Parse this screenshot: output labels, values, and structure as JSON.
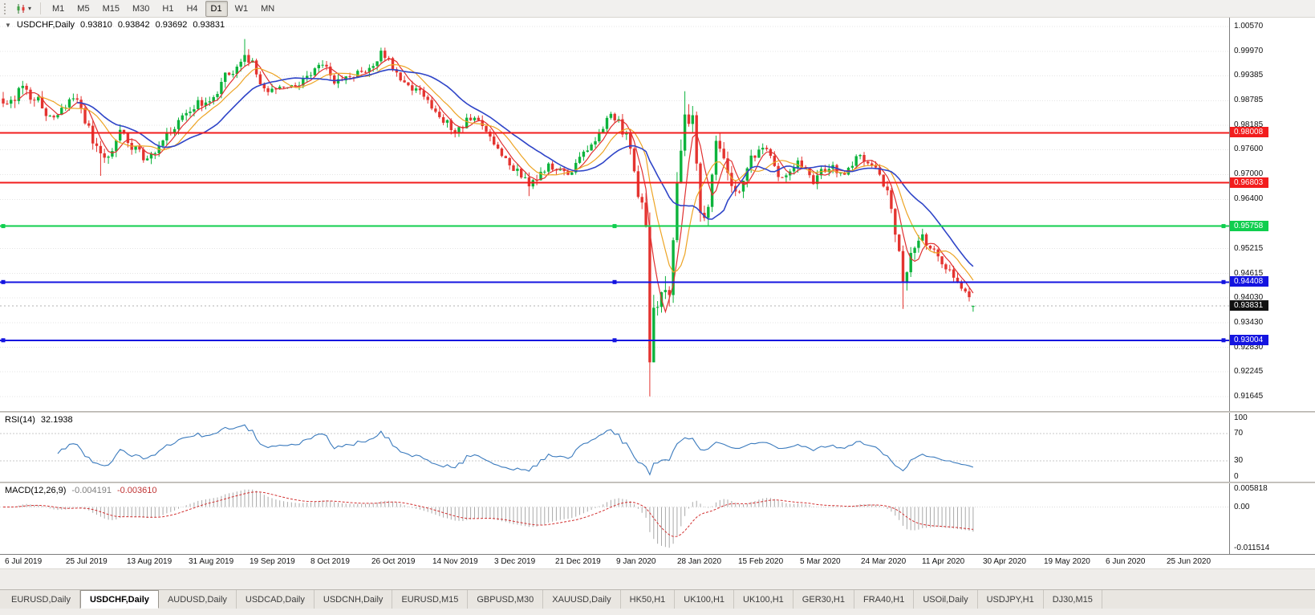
{
  "toolbar": {
    "chart_icon": "candlestick-chart-icon",
    "timeframes": [
      {
        "label": "M1",
        "active": false
      },
      {
        "label": "M5",
        "active": false
      },
      {
        "label": "M15",
        "active": false
      },
      {
        "label": "M30",
        "active": false
      },
      {
        "label": "H1",
        "active": false
      },
      {
        "label": "H4",
        "active": false
      },
      {
        "label": "D1",
        "active": true
      },
      {
        "label": "W1",
        "active": false
      },
      {
        "label": "MN",
        "active": false
      }
    ]
  },
  "icons": {
    "collapse_arrow": "▼",
    "caret_down": "▾"
  },
  "chart_header": {
    "symbol_label": "USDCHF,Daily",
    "open": "0.93810",
    "high": "0.93842",
    "low": "0.93692",
    "close": "0.93831"
  },
  "rsi_panel": {
    "name": "RSI(14)",
    "value": "32.1938"
  },
  "macd_panel": {
    "name": "MACD(12,26,9)",
    "value_main": "-0.004191",
    "value_signal": "-0.003610"
  },
  "time_axis": {
    "labels": [
      "6 Jul 2019",
      "25 Jul 2019",
      "13 Aug 2019",
      "31 Aug 2019",
      "19 Sep 2019",
      "8 Oct 2019",
      "26 Oct 2019",
      "14 Nov 2019",
      "3 Dec 2019",
      "21 Dec 2019",
      "9 Jan 2020",
      "28 Jan 2020",
      "15 Feb 2020",
      "5 Mar 2020",
      "24 Mar 2020",
      "11 Apr 2020",
      "30 Apr 2020",
      "19 May 2020",
      "6 Jun 2020",
      "25 Jun 2020"
    ]
  },
  "tabs": [
    {
      "label": "EURUSD,Daily",
      "active": false
    },
    {
      "label": "USDCHF,Daily",
      "active": true
    },
    {
      "label": "AUDUSD,Daily",
      "active": false
    },
    {
      "label": "USDCAD,Daily",
      "active": false
    },
    {
      "label": "USDCNH,Daily",
      "active": false
    },
    {
      "label": "EURUSD,M15",
      "active": false
    },
    {
      "label": "GBPUSD,M30",
      "active": false
    },
    {
      "label": "XAUUSD,Daily",
      "active": false
    },
    {
      "label": "HK50,H1",
      "active": false
    },
    {
      "label": "UK100,H1",
      "active": false
    },
    {
      "label": "UK100,H1",
      "active": false
    },
    {
      "label": "GER30,H1",
      "active": false
    },
    {
      "label": "FRA40,H1",
      "active": false
    },
    {
      "label": "USOil,Daily",
      "active": false
    },
    {
      "label": "USDJPY,H1",
      "active": false
    },
    {
      "label": "DJ30,M15",
      "active": false
    }
  ],
  "chart_data": {
    "type": "candlestick",
    "symbol": "USDCHF",
    "timeframe": "Daily",
    "n_bars": 250,
    "last": {
      "open": 0.9381,
      "high": 0.93842,
      "low": 0.93692,
      "close": 0.93831
    },
    "ylim": [
      0.91295,
      1.00785
    ],
    "price_axis_labels": [
      "1.00570",
      "0.99970",
      "0.99385",
      "0.98785",
      "0.98185",
      "0.97600",
      "0.97000",
      "0.96400",
      "0.95215",
      "0.94615",
      "0.94030",
      "0.93430",
      "0.92830",
      "0.92245",
      "0.91645"
    ],
    "close_anchors": [
      [
        0,
        0.9872,
        0.003
      ],
      [
        4,
        0.99,
        0.0032
      ],
      [
        9,
        0.9868,
        0.0028
      ],
      [
        14,
        0.9845,
        0.0026
      ],
      [
        19,
        0.9878,
        0.0026
      ],
      [
        25,
        0.973,
        0.003
      ],
      [
        30,
        0.9795,
        0.0026
      ],
      [
        36,
        0.9742,
        0.0026
      ],
      [
        42,
        0.98,
        0.0024
      ],
      [
        48,
        0.9858,
        0.0024
      ],
      [
        54,
        0.9884,
        0.0026
      ],
      [
        59,
        0.9962,
        0.003
      ],
      [
        62,
        0.9998,
        0.003
      ],
      [
        66,
        0.9938,
        0.0026
      ],
      [
        70,
        0.989,
        0.0024
      ],
      [
        75,
        0.9928,
        0.0022
      ],
      [
        81,
        0.9958,
        0.0022
      ],
      [
        86,
        0.9925,
        0.0022
      ],
      [
        92,
        0.995,
        0.0022
      ],
      [
        97,
        0.9992,
        0.0024
      ],
      [
        102,
        0.9945,
        0.0022
      ],
      [
        107,
        0.9898,
        0.0022
      ],
      [
        112,
        0.9852,
        0.0024
      ],
      [
        116,
        0.9808,
        0.0024
      ],
      [
        120,
        0.984,
        0.0022
      ],
      [
        126,
        0.9786,
        0.0022
      ],
      [
        131,
        0.9706,
        0.0024
      ],
      [
        135,
        0.9682,
        0.0024
      ],
      [
        140,
        0.9716,
        0.0022
      ],
      [
        146,
        0.9702,
        0.002
      ],
      [
        151,
        0.9768,
        0.0022
      ],
      [
        155,
        0.9838,
        0.0024
      ],
      [
        158,
        0.9822,
        0.0024
      ],
      [
        161,
        0.9772,
        0.003
      ],
      [
        163,
        0.965,
        0.0045
      ],
      [
        165,
        0.9585,
        0.006
      ],
      [
        166,
        0.929,
        0.008
      ],
      [
        167,
        0.9362,
        0.007
      ],
      [
        169,
        0.9438,
        0.0065
      ],
      [
        171,
        0.938,
        0.006
      ],
      [
        173,
        0.9648,
        0.006
      ],
      [
        175,
        0.9875,
        0.005
      ],
      [
        177,
        0.9838,
        0.0045
      ],
      [
        179,
        0.9568,
        0.005
      ],
      [
        181,
        0.9625,
        0.0042
      ],
      [
        183,
        0.9752,
        0.004
      ],
      [
        186,
        0.968,
        0.0035
      ],
      [
        189,
        0.9648,
        0.0032
      ],
      [
        192,
        0.9718,
        0.003
      ],
      [
        196,
        0.9758,
        0.0028
      ],
      [
        200,
        0.97,
        0.0026
      ],
      [
        204,
        0.9736,
        0.0024
      ],
      [
        208,
        0.9682,
        0.0024
      ],
      [
        212,
        0.9722,
        0.0022
      ],
      [
        216,
        0.9702,
        0.0022
      ],
      [
        220,
        0.9744,
        0.0022
      ],
      [
        224,
        0.9702,
        0.0022
      ],
      [
        227,
        0.9645,
        0.0026
      ],
      [
        229,
        0.956,
        0.0035
      ],
      [
        231,
        0.9448,
        0.005
      ],
      [
        233,
        0.9532,
        0.0035
      ],
      [
        236,
        0.9546,
        0.0028
      ],
      [
        239,
        0.9505,
        0.0026
      ],
      [
        242,
        0.9472,
        0.0024
      ],
      [
        244,
        0.9452,
        0.0022
      ],
      [
        246,
        0.944,
        0.0022
      ],
      [
        248,
        0.9392,
        0.0024
      ],
      [
        249,
        0.93831,
        0.002
      ]
    ],
    "spikes": [
      {
        "i": 25,
        "low": 0.9697
      },
      {
        "i": 62,
        "high": 1.0027
      },
      {
        "i": 97,
        "high": 1.0006
      },
      {
        "i": 135,
        "low": 0.9648
      },
      {
        "i": 166,
        "low": 0.9165
      },
      {
        "i": 175,
        "high": 0.9901
      },
      {
        "i": 231,
        "low": 0.9376
      }
    ],
    "up_color": "#0db33c",
    "down_color": "#e43430",
    "ma": [
      {
        "period": 5,
        "color": "#e03030",
        "width": 1.2
      },
      {
        "period": 10,
        "color": "#eda424",
        "width": 1.2
      },
      {
        "period": 20,
        "color": "#2f45c8",
        "width": 1.6
      }
    ],
    "hlines": [
      {
        "price": 0.98008,
        "color": "#f21d1d",
        "label": "0.98008",
        "handles": false
      },
      {
        "price": 0.96803,
        "color": "#f21d1d",
        "label": "0.96803",
        "handles": false
      },
      {
        "price": 0.95758,
        "color": "#0fce4e",
        "label": "0.95758",
        "handles": true
      },
      {
        "price": 0.94408,
        "color": "#1414e0",
        "label": "0.94408",
        "handles": true
      },
      {
        "price": 0.93004,
        "color": "#1414e0",
        "label": "0.93004",
        "handles": true
      }
    ],
    "current_price": {
      "value": 0.93831,
      "label": "0.93831",
      "badge_color": "#111111"
    },
    "rsi": {
      "period": 14,
      "levels": [
        70,
        30
      ],
      "scale": [
        "100",
        "70",
        "30",
        "0"
      ],
      "color": "#3a7abd",
      "current_value": 32.1938
    },
    "macd": {
      "scale_top": 0.005818,
      "scale_bottom": -0.011514,
      "scale_labels": [
        "0.005818",
        "0.00",
        "-0.011514"
      ],
      "hist_color": "#a9a9a9",
      "signal_color": "#d23030"
    }
  }
}
